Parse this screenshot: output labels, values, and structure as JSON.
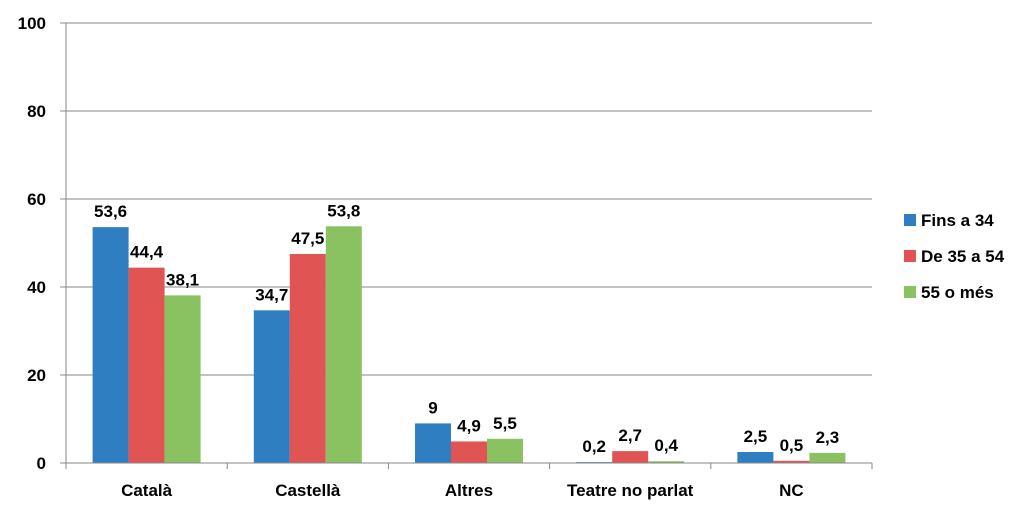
{
  "chart_data": {
    "type": "bar",
    "title": "",
    "xlabel": "",
    "ylabel": "",
    "ylim": [
      0,
      100
    ],
    "yticks": [
      0,
      20,
      40,
      60,
      80,
      100
    ],
    "grid": true,
    "legend_position": "right",
    "categories": [
      "Català",
      "Castellà",
      "Altres",
      "Teatre no parlat",
      "NC"
    ],
    "series": [
      {
        "name": "Fins a 34",
        "color": "#2e7ec1",
        "values": [
          53.6,
          34.7,
          9,
          0.2,
          2.5
        ],
        "labels": [
          "53,6",
          "34,7",
          "9",
          "0,2",
          "2,5"
        ]
      },
      {
        "name": "De 35 a 54",
        "color": "#e05454",
        "values": [
          44.4,
          47.5,
          4.9,
          2.7,
          0.5
        ],
        "labels": [
          "44,4",
          "47,5",
          "4,9",
          "2,7",
          "0,5"
        ]
      },
      {
        "name": "55 o més",
        "color": "#8bc261",
        "values": [
          38.1,
          53.8,
          5.5,
          0.4,
          2.3
        ],
        "labels": [
          "38,1",
          "53,8",
          "5,5",
          "0,4",
          "2,3"
        ]
      }
    ]
  }
}
